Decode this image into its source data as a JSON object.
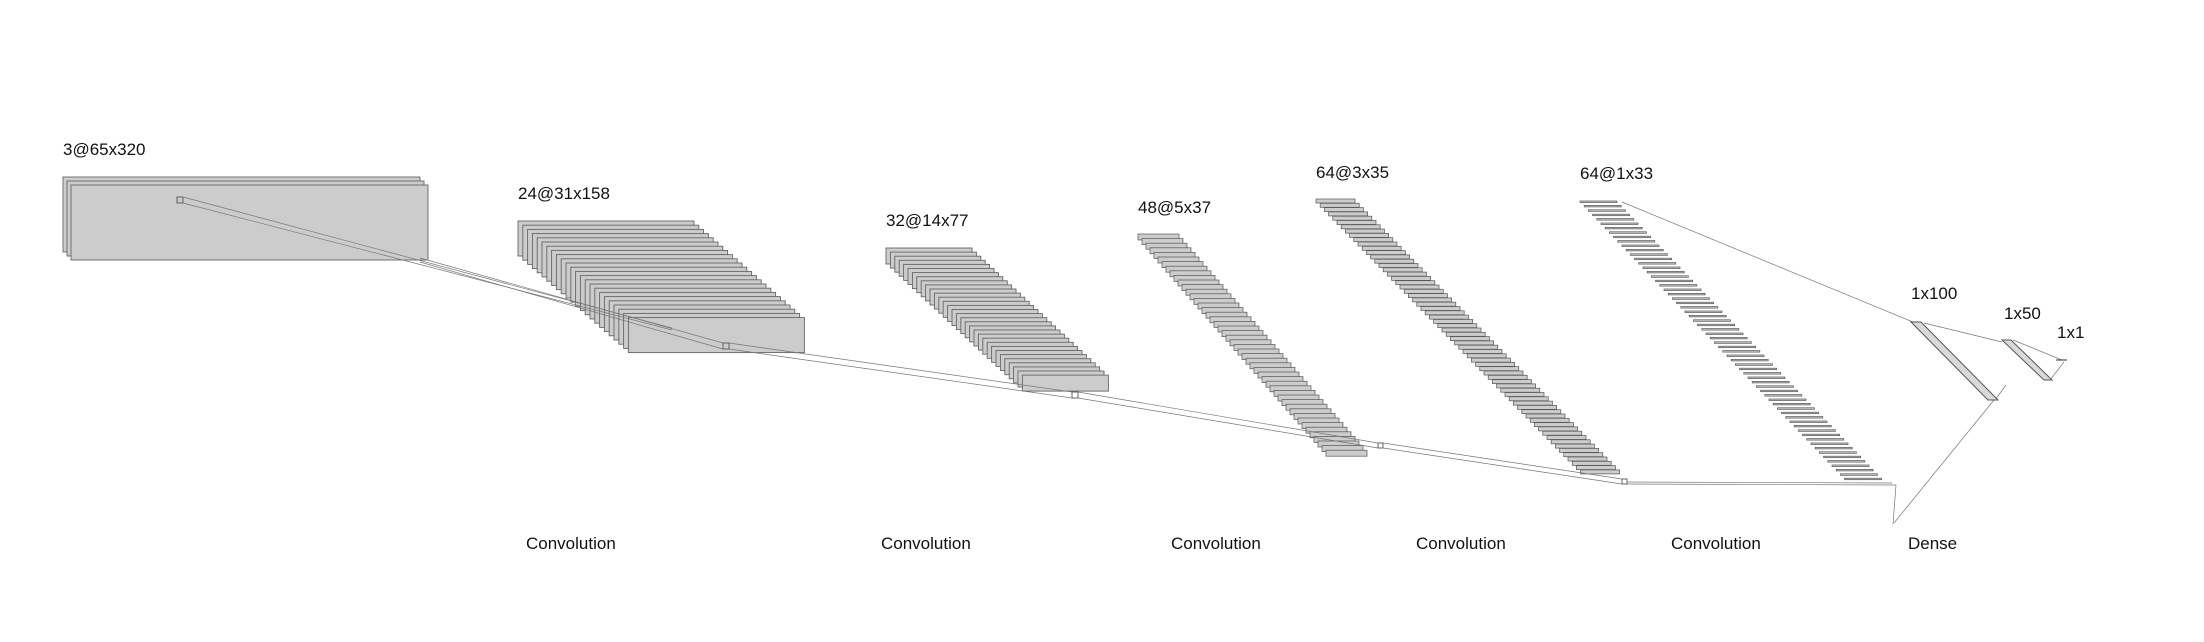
{
  "layers": [
    {
      "id": "input",
      "label": "3@65x320"
    },
    {
      "id": "conv1",
      "label": "24@31x158"
    },
    {
      "id": "conv2",
      "label": "32@14x77"
    },
    {
      "id": "conv3",
      "label": "48@5x37"
    },
    {
      "id": "conv4",
      "label": "64@3x35"
    },
    {
      "id": "conv5",
      "label": "64@1x33"
    },
    {
      "id": "fc1",
      "label": "1x100"
    },
    {
      "id": "fc2",
      "label": "1x50"
    },
    {
      "id": "out",
      "label": "1x1"
    }
  ],
  "operations": [
    {
      "id": "op1",
      "label": "Convolution"
    },
    {
      "id": "op2",
      "label": "Convolution"
    },
    {
      "id": "op3",
      "label": "Convolution"
    },
    {
      "id": "op4",
      "label": "Convolution"
    },
    {
      "id": "op5",
      "label": "Convolution"
    },
    {
      "id": "op6",
      "label": "Dense"
    }
  ],
  "colors": {
    "map_fill": "#cccccc",
    "map_stroke": "#666666",
    "line": "#777777",
    "text": "#111111"
  }
}
